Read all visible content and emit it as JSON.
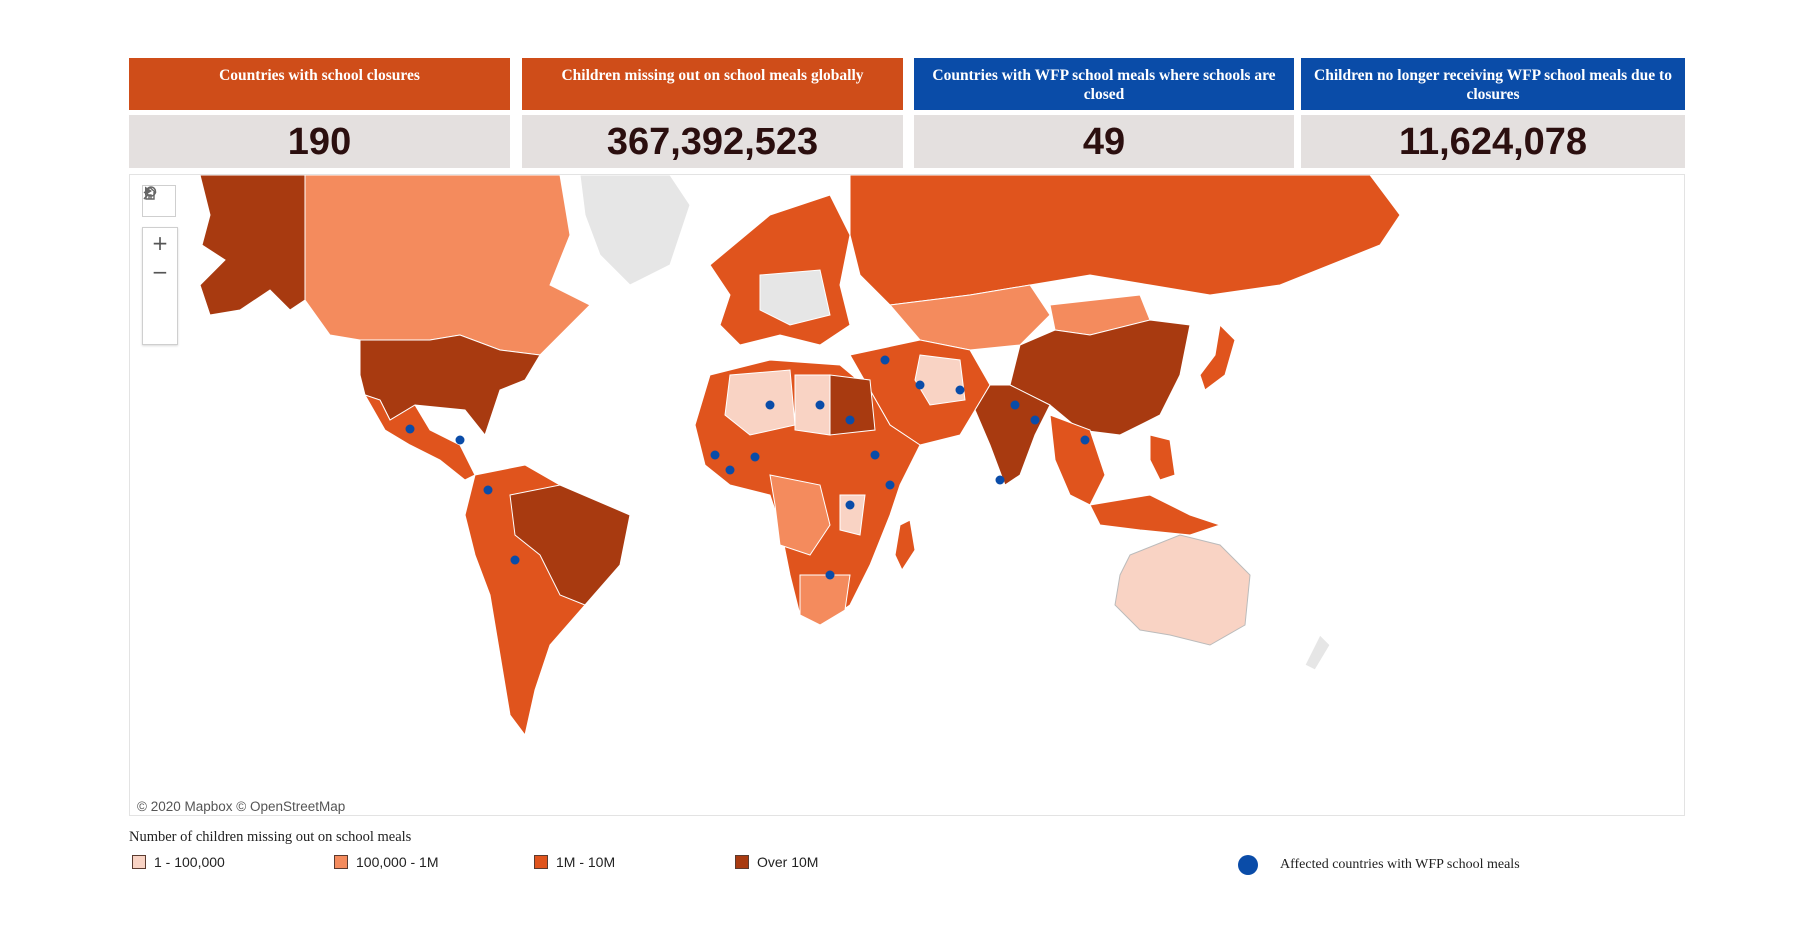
{
  "kpis": [
    {
      "label": "Countries with school closures",
      "value": "190",
      "color": "#cf4d19"
    },
    {
      "label": "Children missing out on school meals globally",
      "value": "367,392,523",
      "color": "#cf4d19"
    },
    {
      "label": "Countries with WFP school meals where schools are closed",
      "value": "49",
      "color": "#0a4ca8"
    },
    {
      "label": "Children no longer receiving WFP school meals due to closures",
      "value": "11,624,078",
      "color": "#0a4ca8"
    }
  ],
  "map": {
    "attribution": "© 2020 Mapbox © OpenStreetMap",
    "tools": {
      "search": "search-icon",
      "zoom_in": "+",
      "zoom_out": "−",
      "home": "home-icon",
      "play": "play-icon"
    }
  },
  "legend": {
    "title": "Number of children missing out on school meals",
    "items": [
      {
        "label": "1 - 100,000",
        "color": "#f9d3c4"
      },
      {
        "label": "100,000 - 1M",
        "color": "#f48b5d"
      },
      {
        "label": "1M - 10M",
        "color": "#e0541d"
      },
      {
        "label": "Over 10M",
        "color": "#a83a10"
      }
    ],
    "wfp": {
      "label": "Affected countries with WFP school meals",
      "color": "#0a4ca8"
    }
  }
}
